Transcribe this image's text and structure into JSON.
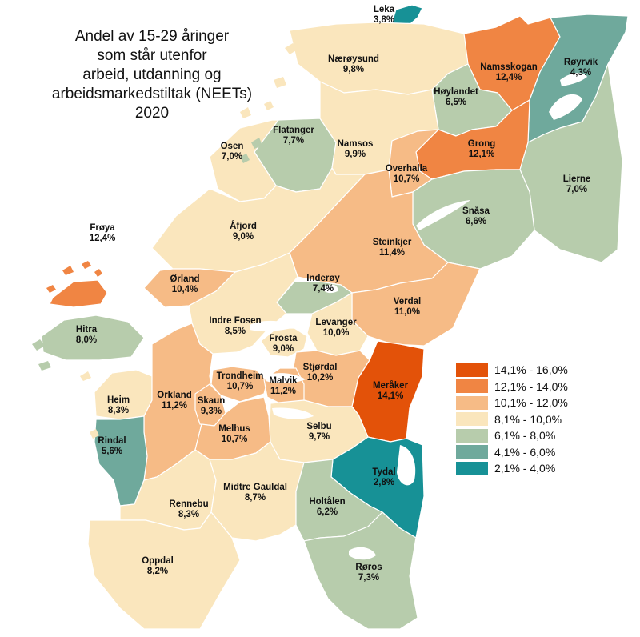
{
  "title_lines": [
    "Andel av 15-29 åringer",
    "som står utenfor",
    "arbeid, utdanning og",
    "arbeidsmarkedstiltak (NEETs)",
    "2020"
  ],
  "legend": [
    {
      "label": "14,1% - 16,0%",
      "color": "#e35209"
    },
    {
      "label": "12,1% - 14,0%",
      "color": "#f08543"
    },
    {
      "label": "10,1% - 12,0%",
      "color": "#f6bb86"
    },
    {
      "label": "8,1% - 10,0%",
      "color": "#fae6bd"
    },
    {
      "label": "6,1% - 8,0%",
      "color": "#b7ccac"
    },
    {
      "label": "4,1% - 6,0%",
      "color": "#6fa99c"
    },
    {
      "label": "2,1% - 4,0%",
      "color": "#179196"
    }
  ],
  "municipalities": [
    {
      "name": "Leka",
      "value": "3,8%"
    },
    {
      "name": "Nærøysund",
      "value": "9,8%"
    },
    {
      "name": "Namsskogan",
      "value": "12,4%"
    },
    {
      "name": "Røyrvik",
      "value": "4,3%"
    },
    {
      "name": "Høylandet",
      "value": "6,5%"
    },
    {
      "name": "Flatanger",
      "value": "7,7%"
    },
    {
      "name": "Namsos",
      "value": "9,9%"
    },
    {
      "name": "Grong",
      "value": "12,1%"
    },
    {
      "name": "Osen",
      "value": "7,0%"
    },
    {
      "name": "Overhalla",
      "value": "10,7%"
    },
    {
      "name": "Lierne",
      "value": "7,0%"
    },
    {
      "name": "Snåsa",
      "value": "6,6%"
    },
    {
      "name": "Frøya",
      "value": "12,4%"
    },
    {
      "name": "Åfjord",
      "value": "9,0%"
    },
    {
      "name": "Steinkjer",
      "value": "11,4%"
    },
    {
      "name": "Ørland",
      "value": "10,4%"
    },
    {
      "name": "Inderøy",
      "value": "7,4%"
    },
    {
      "name": "Verdal",
      "value": "11,0%"
    },
    {
      "name": "Hitra",
      "value": "8,0%"
    },
    {
      "name": "Indre Fosen",
      "value": "8,5%"
    },
    {
      "name": "Levanger",
      "value": "10,0%"
    },
    {
      "name": "Frosta",
      "value": "9,0%"
    },
    {
      "name": "Trondheim",
      "value": "10,7%"
    },
    {
      "name": "Stjørdal",
      "value": "10,2%"
    },
    {
      "name": "Meråker",
      "value": "14,1%"
    },
    {
      "name": "Malvik",
      "value": "11,2%"
    },
    {
      "name": "Heim",
      "value": "8,3%"
    },
    {
      "name": "Orkland",
      "value": "11,2%"
    },
    {
      "name": "Skaun",
      "value": "9,3%"
    },
    {
      "name": "Selbu",
      "value": "9,7%"
    },
    {
      "name": "Melhus",
      "value": "10,7%"
    },
    {
      "name": "Rindal",
      "value": "5,6%"
    },
    {
      "name": "Tydal",
      "value": "2,8%"
    },
    {
      "name": "Rennebu",
      "value": "8,3%"
    },
    {
      "name": "Midtre Gauldal",
      "value": "8,7%"
    },
    {
      "name": "Holtålen",
      "value": "6,2%"
    },
    {
      "name": "Oppdal",
      "value": "8,2%"
    },
    {
      "name": "Røros",
      "value": "7,3%"
    }
  ]
}
